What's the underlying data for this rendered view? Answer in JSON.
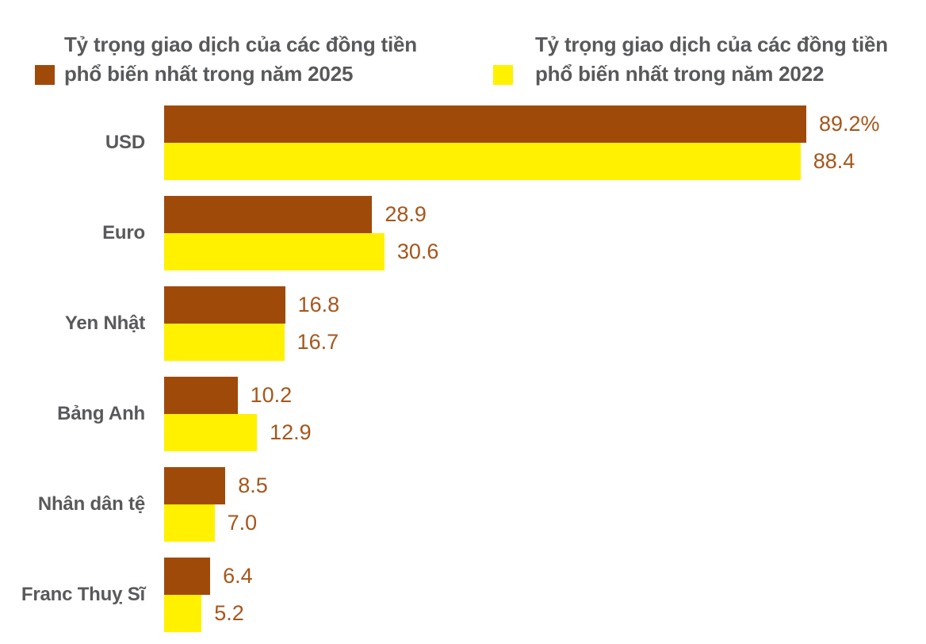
{
  "legend": {
    "items": [
      {
        "line1": "Tỷ trọng giao dịch của các đồng tiền",
        "line2": "phổ biến nhất trong năm 2025",
        "swatch_color": "#A04A0A"
      },
      {
        "line1": "Tỷ trọng giao dịch của các đồng tiền",
        "line2": "phổ biến nhất trong năm 2022",
        "swatch_color": "#FFF100"
      }
    ]
  },
  "colors": {
    "series_2025_brown": "#A04A0A",
    "series_2022_yellow": "#FFF100",
    "value_label_brown": "#A5561C",
    "category_label_gray": "#58595B",
    "background": "#FFFFFF"
  },
  "chart_data": {
    "type": "bar",
    "orientation": "horizontal",
    "title": "",
    "xlabel": "",
    "ylabel": "",
    "xlim": [
      0,
      100
    ],
    "grid": false,
    "legend_position": "top",
    "value_unit": "percent",
    "categories": [
      "USD",
      "Euro",
      "Yen Nhật",
      "Bảng Anh",
      "Nhân dân tệ",
      "Franc Thuỵ Sĩ"
    ],
    "series": [
      {
        "name": "Tỷ trọng giao dịch của các đồng tiền phổ biến nhất trong năm 2025",
        "color": "#A04A0A",
        "values": [
          89.2,
          28.9,
          16.8,
          10.2,
          8.5,
          6.4
        ],
        "labels": [
          "89.2%",
          "28.9",
          "16.8",
          "10.2",
          "8.5",
          "6.4"
        ]
      },
      {
        "name": "Tỷ trọng giao dịch của các đồng tiền phổ biến nhất trong năm 2022",
        "color": "#FFF100",
        "values": [
          88.4,
          30.6,
          16.7,
          12.9,
          7.0,
          5.2
        ],
        "labels": [
          "88.4",
          "30.6",
          "16.7",
          "12.9",
          "7.0",
          "5.2"
        ]
      }
    ]
  }
}
